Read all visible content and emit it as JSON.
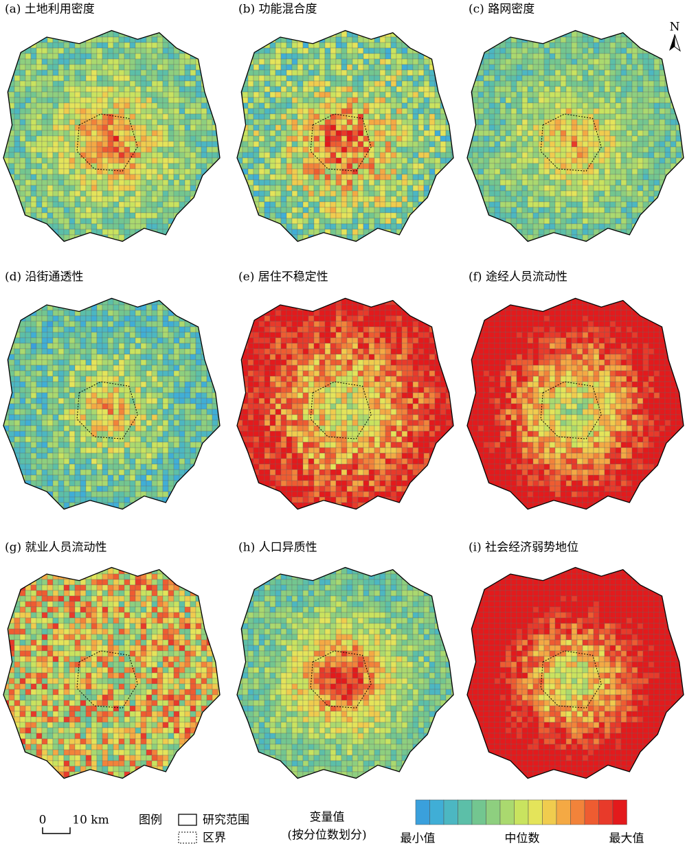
{
  "panels": [
    {
      "title": "(a) 土地利用密度"
    },
    {
      "title": "(b) 功能混合度"
    },
    {
      "title": "(c) 路网密度"
    },
    {
      "title": "(d) 沿街通透性"
    },
    {
      "title": "(e) 居住不稳定性"
    },
    {
      "title": "(f) 途经人员流动性"
    },
    {
      "title": "(g) 就业人员流动性"
    },
    {
      "title": "(h) 人口异质性"
    },
    {
      "title": "(i) 社会经济弱势地位"
    }
  ],
  "north": "N",
  "scale_bar": {
    "start": "0",
    "end": "10 km"
  },
  "legend": {
    "title": "图例",
    "study_area": "研究范围",
    "district": "区界",
    "variable_title": "变量值",
    "variable_subtitle": "(按分位数划分)",
    "colors": [
      "#3aa0dc",
      "#40aed6",
      "#4cb7c2",
      "#5cbfa8",
      "#73c690",
      "#8ecf7f",
      "#aad96f",
      "#c9e35f",
      "#e4e45a",
      "#f0cc4e",
      "#f4a944",
      "#f2833a",
      "#ee5c31",
      "#e83a2a",
      "#e31a1c"
    ],
    "min_label": "最小值",
    "median_label": "中位数",
    "max_label": "最大值"
  }
}
